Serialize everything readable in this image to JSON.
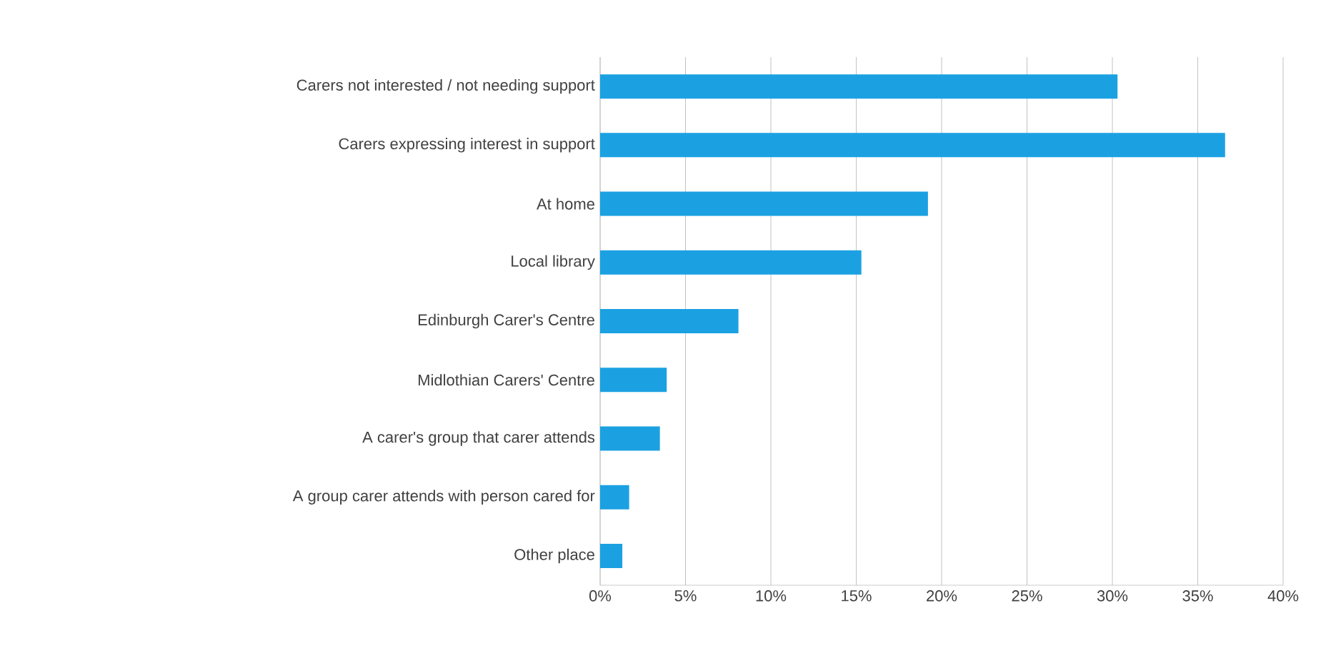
{
  "chart_data": {
    "type": "bar",
    "orientation": "horizontal",
    "categories": [
      "Carers not interested / not needing support",
      "Carers expressing interest in support",
      "At home",
      "Local library",
      "Edinburgh Carer's Centre",
      "Midlothian Carers' Centre",
      "A carer's group that carer attends",
      "A group carer attends with person cared for",
      "Other place"
    ],
    "values": [
      30.3,
      36.6,
      19.2,
      15.3,
      8.1,
      3.9,
      3.5,
      1.7,
      1.3
    ],
    "color": "#1ba1e2",
    "xlim": [
      0,
      40
    ],
    "xticks": [
      {
        "value": 0,
        "label": "0%"
      },
      {
        "value": 5,
        "label": "5%"
      },
      {
        "value": 10,
        "label": "10%"
      },
      {
        "value": 15,
        "label": "15%"
      },
      {
        "value": 20,
        "label": "20%"
      },
      {
        "value": 25,
        "label": "25%"
      },
      {
        "value": 30,
        "label": "30%"
      },
      {
        "value": 35,
        "label": "35%"
      },
      {
        "value": 40,
        "label": "40%"
      }
    ],
    "grid": "x"
  }
}
